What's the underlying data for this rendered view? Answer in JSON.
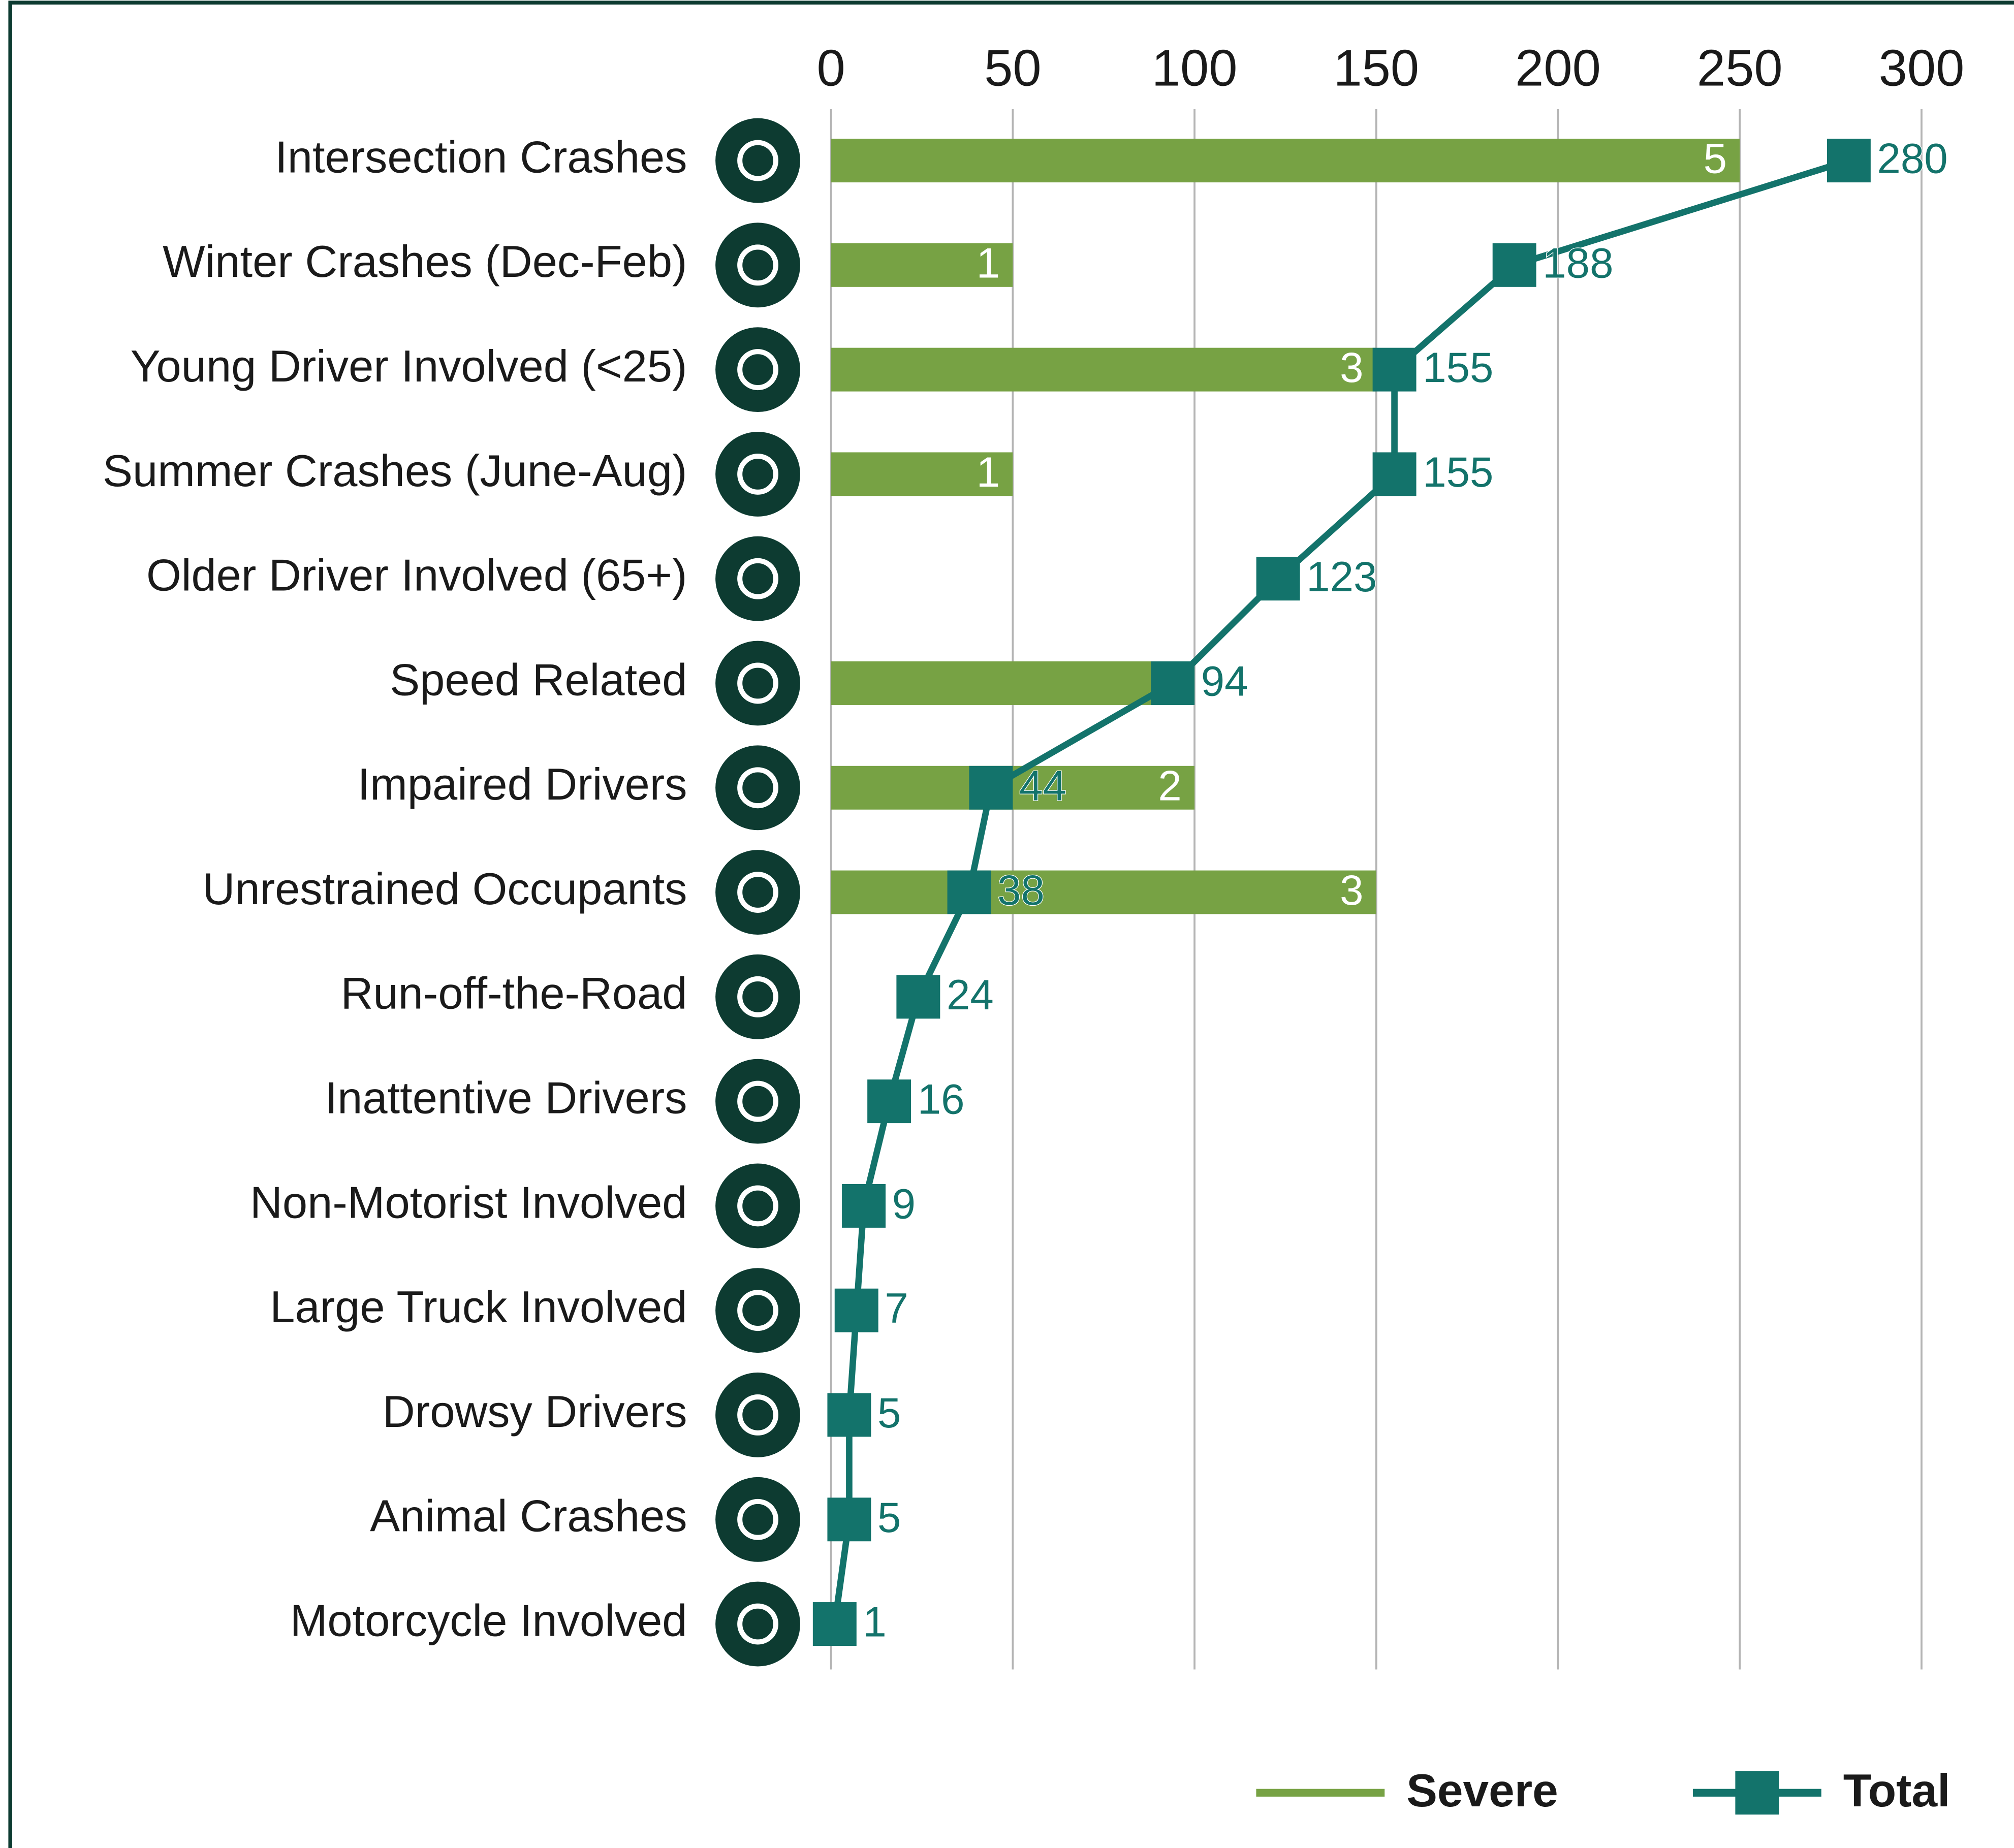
{
  "chart_data": {
    "type": "bar-line",
    "categories": [
      "Intersection Crashes",
      "Winter Crashes (Dec-Feb)",
      "Young Driver Involved (<25)",
      "Summer Crashes (June-Aug)",
      "Older Driver Involved (65+)",
      "Speed Related",
      "Impaired Drivers",
      "Unrestrained Occupants",
      "Run-off-the-Road",
      "Inattentive Drivers",
      "Non-Motorist Involved",
      "Large Truck Involved",
      "Drowsy Drivers",
      "Animal Crashes",
      "Motorcycle Involved"
    ],
    "series": [
      {
        "name": "Severe",
        "type": "bar",
        "axis": "x2",
        "color": "#77a244",
        "values": [
          5,
          1,
          3,
          1,
          null,
          2,
          2,
          3,
          null,
          null,
          null,
          null,
          null,
          null,
          null
        ]
      },
      {
        "name": "Total",
        "type": "line",
        "axis": "x",
        "color": "#13736b",
        "values": [
          280,
          188,
          155,
          155,
          123,
          94,
          44,
          38,
          24,
          16,
          9,
          7,
          5,
          5,
          1
        ]
      }
    ],
    "xlim": [
      0,
      300
    ],
    "xticks": [
      0,
      50,
      100,
      150,
      200,
      250,
      300
    ],
    "x2lim": [
      0,
      6
    ],
    "grid": true,
    "legend": "bottom-right"
  }
}
